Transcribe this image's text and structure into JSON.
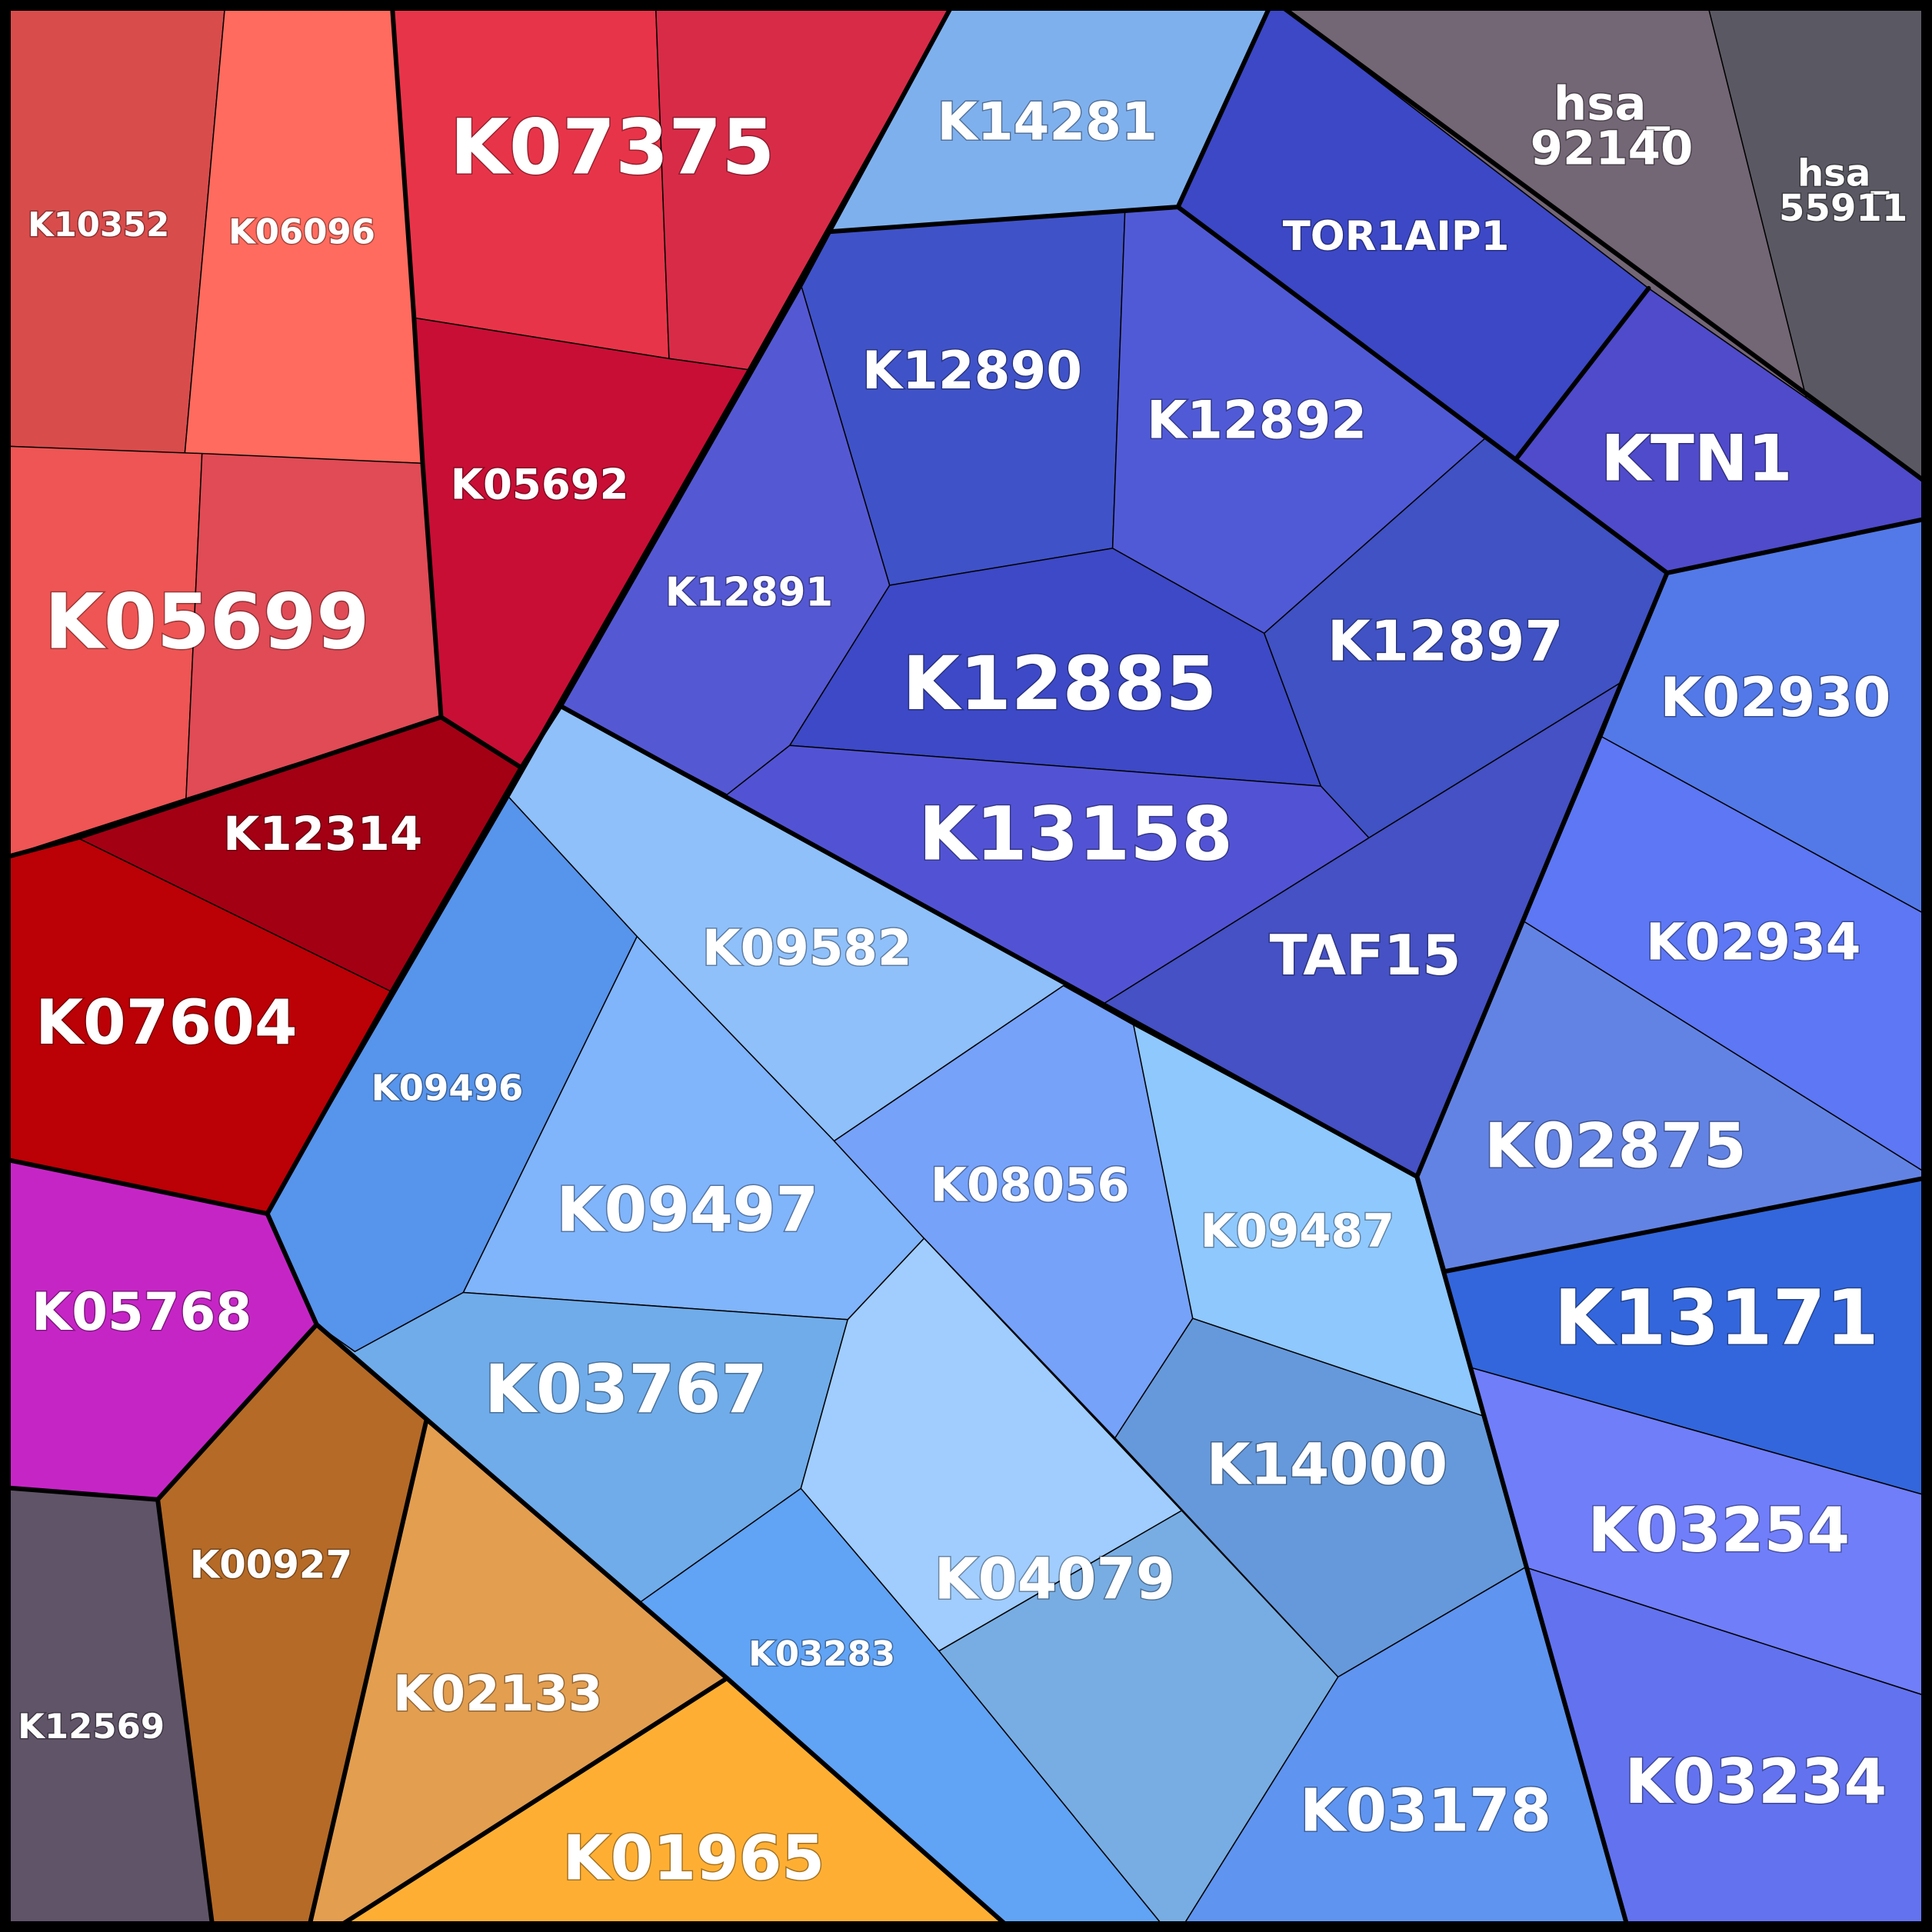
{
  "cells": [
    {
      "id": "K10352",
      "label": "K10352",
      "color": "#d94c4c"
    },
    {
      "id": "K06096",
      "label": "K06096",
      "color": "#ff6b5e"
    },
    {
      "id": "K07375",
      "label": "K07375",
      "color": "#e83449"
    },
    {
      "id": "K07375-b",
      "label": "",
      "color": "#d82b48"
    },
    {
      "id": "K05692",
      "label": "K05692",
      "color": "#c80e35"
    },
    {
      "id": "K05699",
      "label": "K05699",
      "color": "#ee5554"
    },
    {
      "id": "K05699-b",
      "label": "",
      "color": "#e04b55"
    },
    {
      "id": "K12314",
      "label": "K12314",
      "color": "#a30014"
    },
    {
      "id": "K07604",
      "label": "K07604",
      "color": "#bb0006"
    },
    {
      "id": "K05768",
      "label": "K05768",
      "color": "#c625c6"
    },
    {
      "id": "K12569",
      "label": "K12569",
      "color": "#605468"
    },
    {
      "id": "K00927",
      "label": "K00927",
      "color": "#b56a27"
    },
    {
      "id": "K02133",
      "label": "K02133",
      "color": "#e39e50"
    },
    {
      "id": "K01965",
      "label": "K01965",
      "color": "#feaf33"
    },
    {
      "id": "K14281",
      "label": "K14281",
      "color": "#7fb0ee"
    },
    {
      "id": "TOR1AIP1",
      "label": "TOR1AIP1",
      "color": "#3c48c6"
    },
    {
      "id": "hsa_92140",
      "label": "hsa_ 92140",
      "color": "#736675"
    },
    {
      "id": "hsa_55911",
      "label": "hsa_ 55911",
      "color": "#5a5963"
    },
    {
      "id": "KTN1",
      "label": "KTN1",
      "color": "#4f4bcb"
    },
    {
      "id": "K12890",
      "label": "K12890",
      "color": "#4052c8"
    },
    {
      "id": "K12892",
      "label": "K12892",
      "color": "#515ad6"
    },
    {
      "id": "K12891",
      "label": "K12891",
      "color": "#5558d3"
    },
    {
      "id": "K12885",
      "label": "K12885",
      "color": "#3d49c6"
    },
    {
      "id": "K12897",
      "label": "K12897",
      "color": "#4052c4"
    },
    {
      "id": "K13158",
      "label": "K13158",
      "color": "#5253d4"
    },
    {
      "id": "TAF15",
      "label": "TAF15",
      "color": "#4551c4"
    },
    {
      "id": "K02930",
      "label": "K02930",
      "color": "#5379e8"
    },
    {
      "id": "K02934",
      "label": "K02934",
      "color": "#5d77f5"
    },
    {
      "id": "K02875",
      "label": "K02875",
      "color": "#6383e4"
    },
    {
      "id": "K13171",
      "label": "K13171",
      "color": "#3366dc"
    },
    {
      "id": "K03254",
      "label": "K03254",
      "color": "#707efa"
    },
    {
      "id": "K03234",
      "label": "K03234",
      "color": "#6372ef"
    },
    {
      "id": "K09582",
      "label": "K09582",
      "color": "#8fc0fa"
    },
    {
      "id": "K09496",
      "label": "K09496",
      "color": "#5794eb"
    },
    {
      "id": "K09497",
      "label": "K09497",
      "color": "#80b4fb"
    },
    {
      "id": "K08056",
      "label": "K08056",
      "color": "#76a2fa"
    },
    {
      "id": "K09487",
      "label": "K09487",
      "color": "#8fc8fd"
    },
    {
      "id": "K03767",
      "label": "K03767",
      "color": "#70acea"
    },
    {
      "id": "K04079",
      "label": "K04079",
      "color": "#a0cdfd"
    },
    {
      "id": "K04079-b",
      "label": "",
      "color": "#78ade3"
    },
    {
      "id": "K14000",
      "label": "K14000",
      "color": "#6699db"
    },
    {
      "id": "K03283",
      "label": "K03283",
      "color": "#61a3f5"
    },
    {
      "id": "K03178",
      "label": "K03178",
      "color": "#5f94f0"
    }
  ]
}
